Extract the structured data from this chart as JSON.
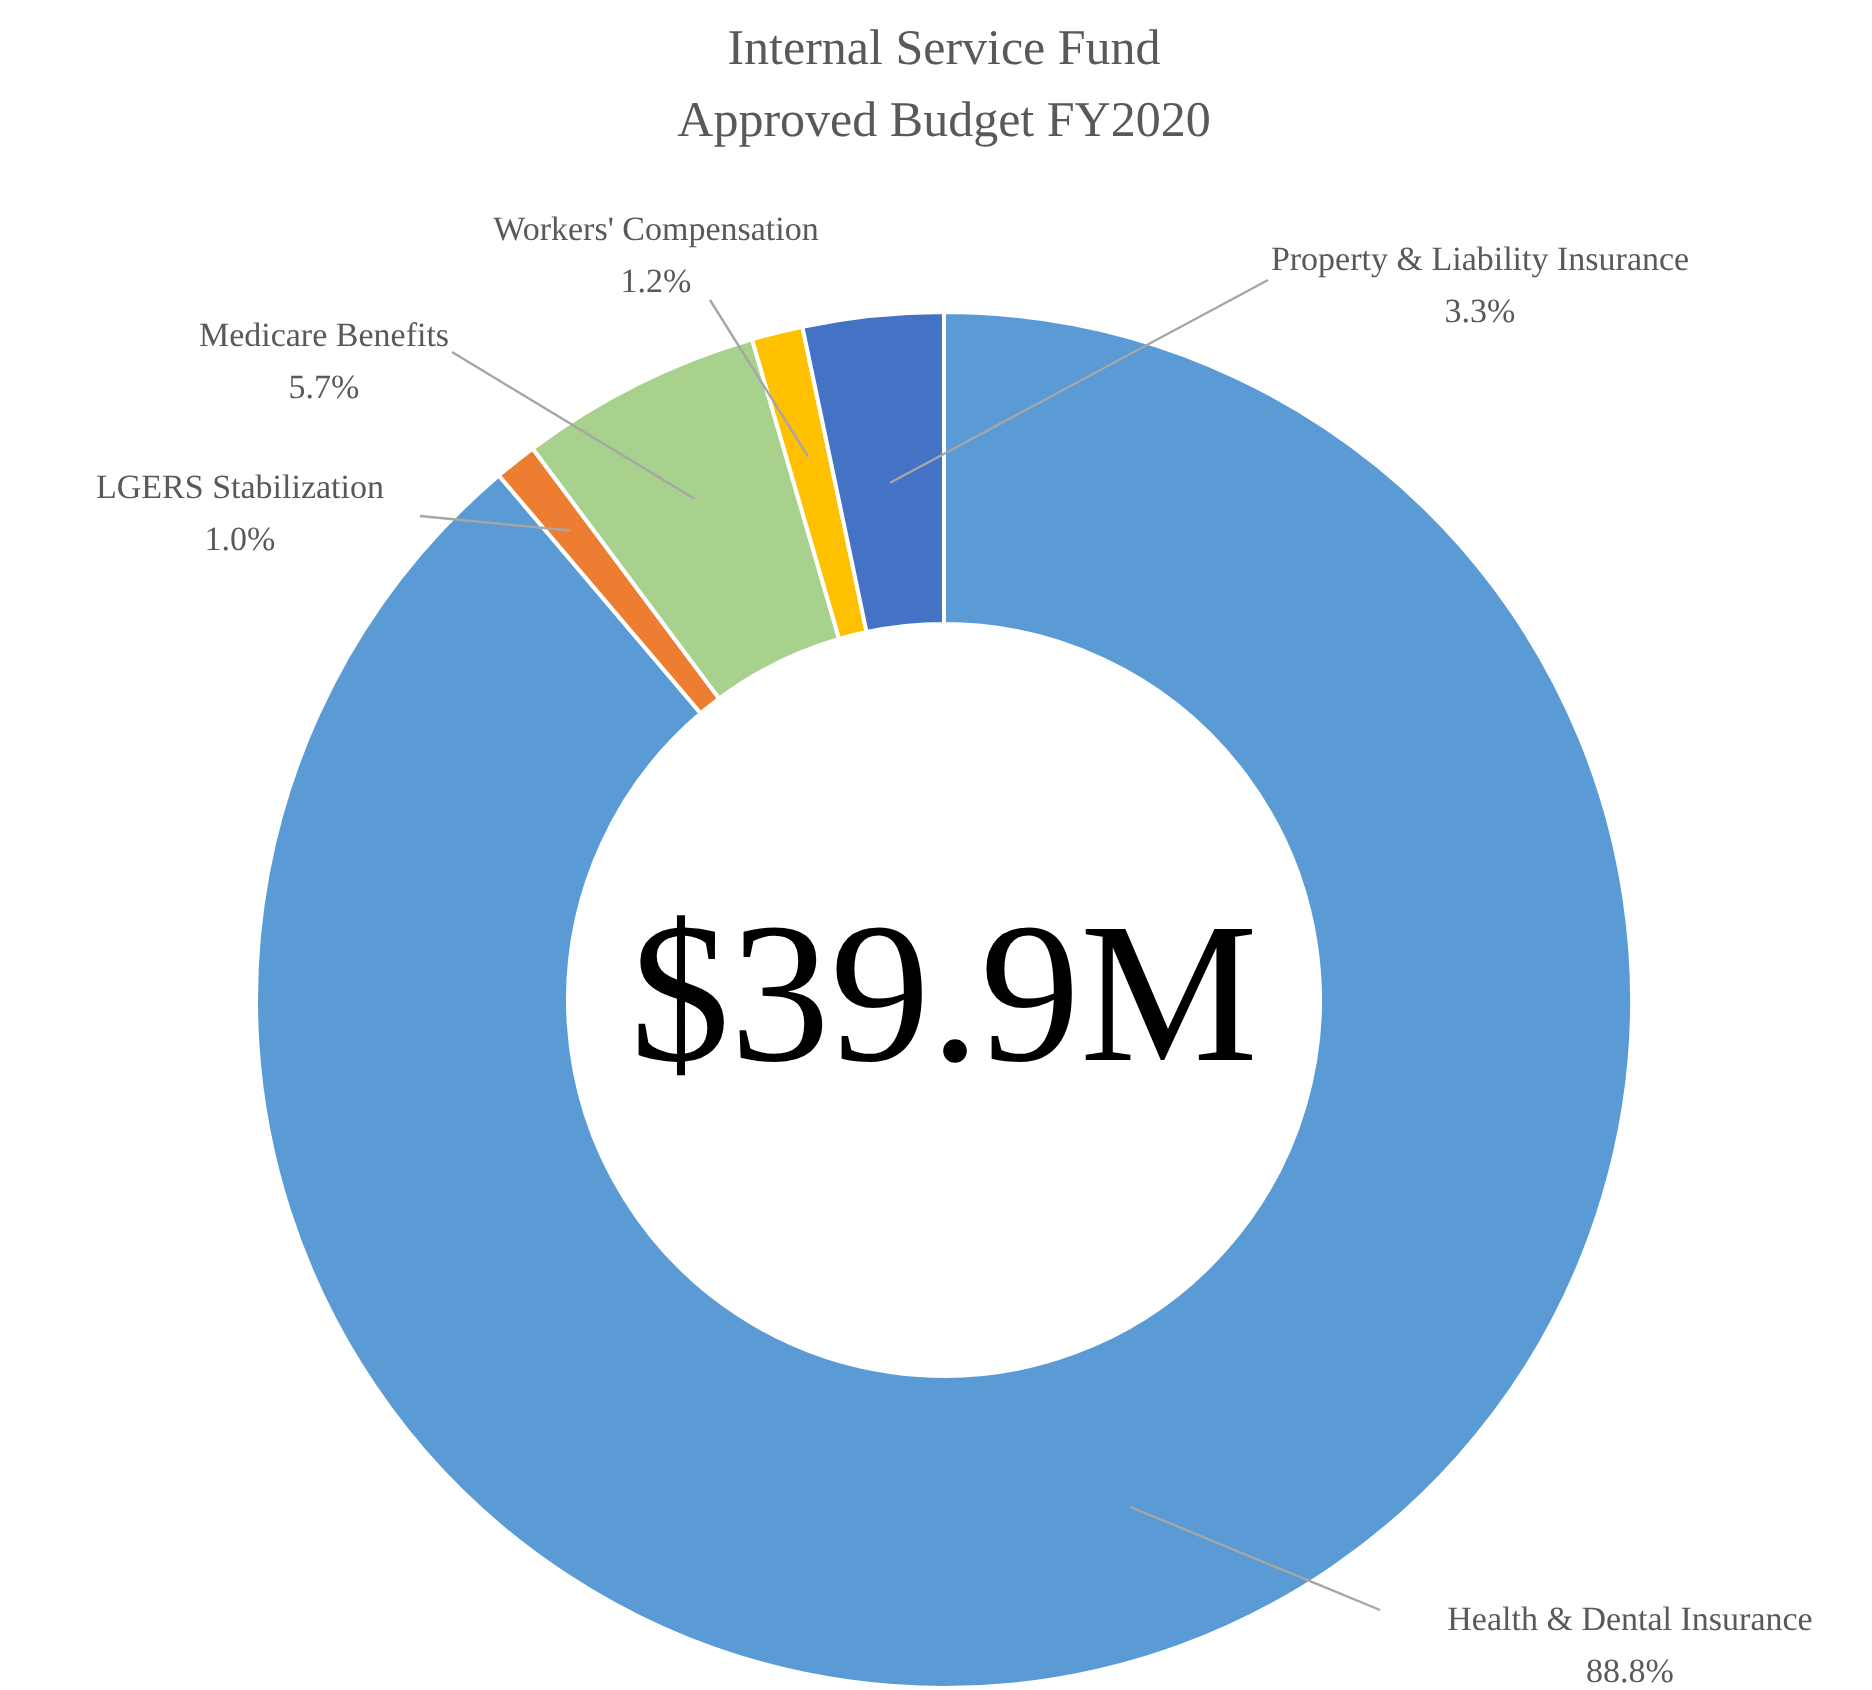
{
  "chart_data": {
    "type": "donut",
    "title": "Internal Service Fund",
    "subtitle": "Approved Budget FY2020",
    "categories": [
      "Health & Dental Insurance",
      "LGERS Stabilization",
      "Medicare Benefits",
      "Workers' Compensation",
      "Property & Liability Insurance"
    ],
    "values": [
      88.8,
      1.0,
      5.7,
      1.2,
      3.3
    ],
    "value_labels": [
      "88.8%",
      "1.0%",
      "5.7%",
      "1.2%",
      "3.3%"
    ],
    "colors": [
      "#5b9bd5",
      "#ed7d31",
      "#a9d18e",
      "#ffc000",
      "#4472c4"
    ],
    "annotations": [
      "$39.9M"
    ]
  }
}
